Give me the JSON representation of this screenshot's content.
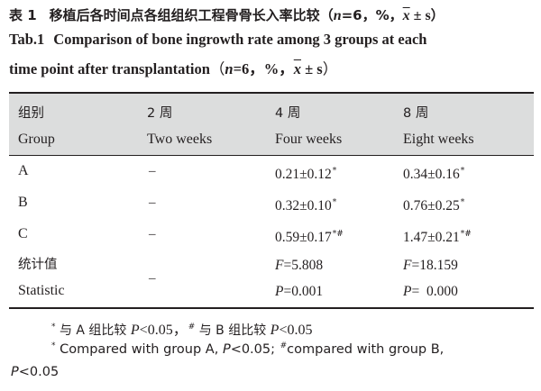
{
  "title": {
    "zh_label": "表 1",
    "zh_text": "移植后各时间点各组组织工程骨骨长入率比较",
    "zh_paren_open": "（",
    "n_symbol": "n",
    "zh_stats": "=6，%，",
    "xbar": "x",
    "pm_s": " ± s",
    "zh_paren_close": "）",
    "en_label": "Tab.1",
    "en_line1": "Comparison of bone ingrowth rate among 3 groups at each",
    "en_line2": "time point after transplantation",
    "en_paren_open": "（",
    "en_stats": "=6，%，",
    "en_paren_close": "）"
  },
  "table": {
    "header": {
      "col0_zh": "组别",
      "col0_en": "Group",
      "col1_zh": "2 周",
      "col1_en": "Two weeks",
      "col2_zh": "4 周",
      "col2_en": "Four weeks",
      "col3_zh": "8 周",
      "col3_en": "Eight weeks"
    },
    "rows": [
      {
        "group": "A",
        "w2": "–",
        "w4": "0.21±0.12",
        "w4_mark": "*",
        "w8": "0.34±0.16",
        "w8_mark": "*"
      },
      {
        "group": "B",
        "w2": "–",
        "w4": "0.32±0.10",
        "w4_mark": "*",
        "w8": "0.76±0.25",
        "w8_mark": "*"
      },
      {
        "group": "C",
        "w2": "–",
        "w4": "0.59±0.17",
        "w4_mark": "*#",
        "w8": "1.47±0.21",
        "w8_mark": "*#"
      }
    ],
    "statistic": {
      "label_zh": "统计值",
      "label_en": "Statistic",
      "w2": "–",
      "w4_f_sym": "F",
      "w4_f_val": "=5.808",
      "w4_p_sym": "P",
      "w4_p_val": "=0.001",
      "w8_f_sym": "F",
      "w8_f_val": "=18.159",
      "w8_p_sym": "P",
      "w8_p_val": "=  0.000"
    }
  },
  "notes": {
    "zh_mark1": "*",
    "zh_text1": "与 A 组比较 ",
    "p_sym": "P",
    "zh_val1": "<0.05，",
    "zh_mark2": "#",
    "zh_text2": "与 B 组比较 ",
    "zh_val2": "<0.05",
    "en_mark1": "*",
    "en_text1": "Compared with group A, ",
    "en_val1": "<0.05; ",
    "en_mark2": "#",
    "en_text2": "compared with group B,",
    "en_line2_val": "<0.05"
  }
}
